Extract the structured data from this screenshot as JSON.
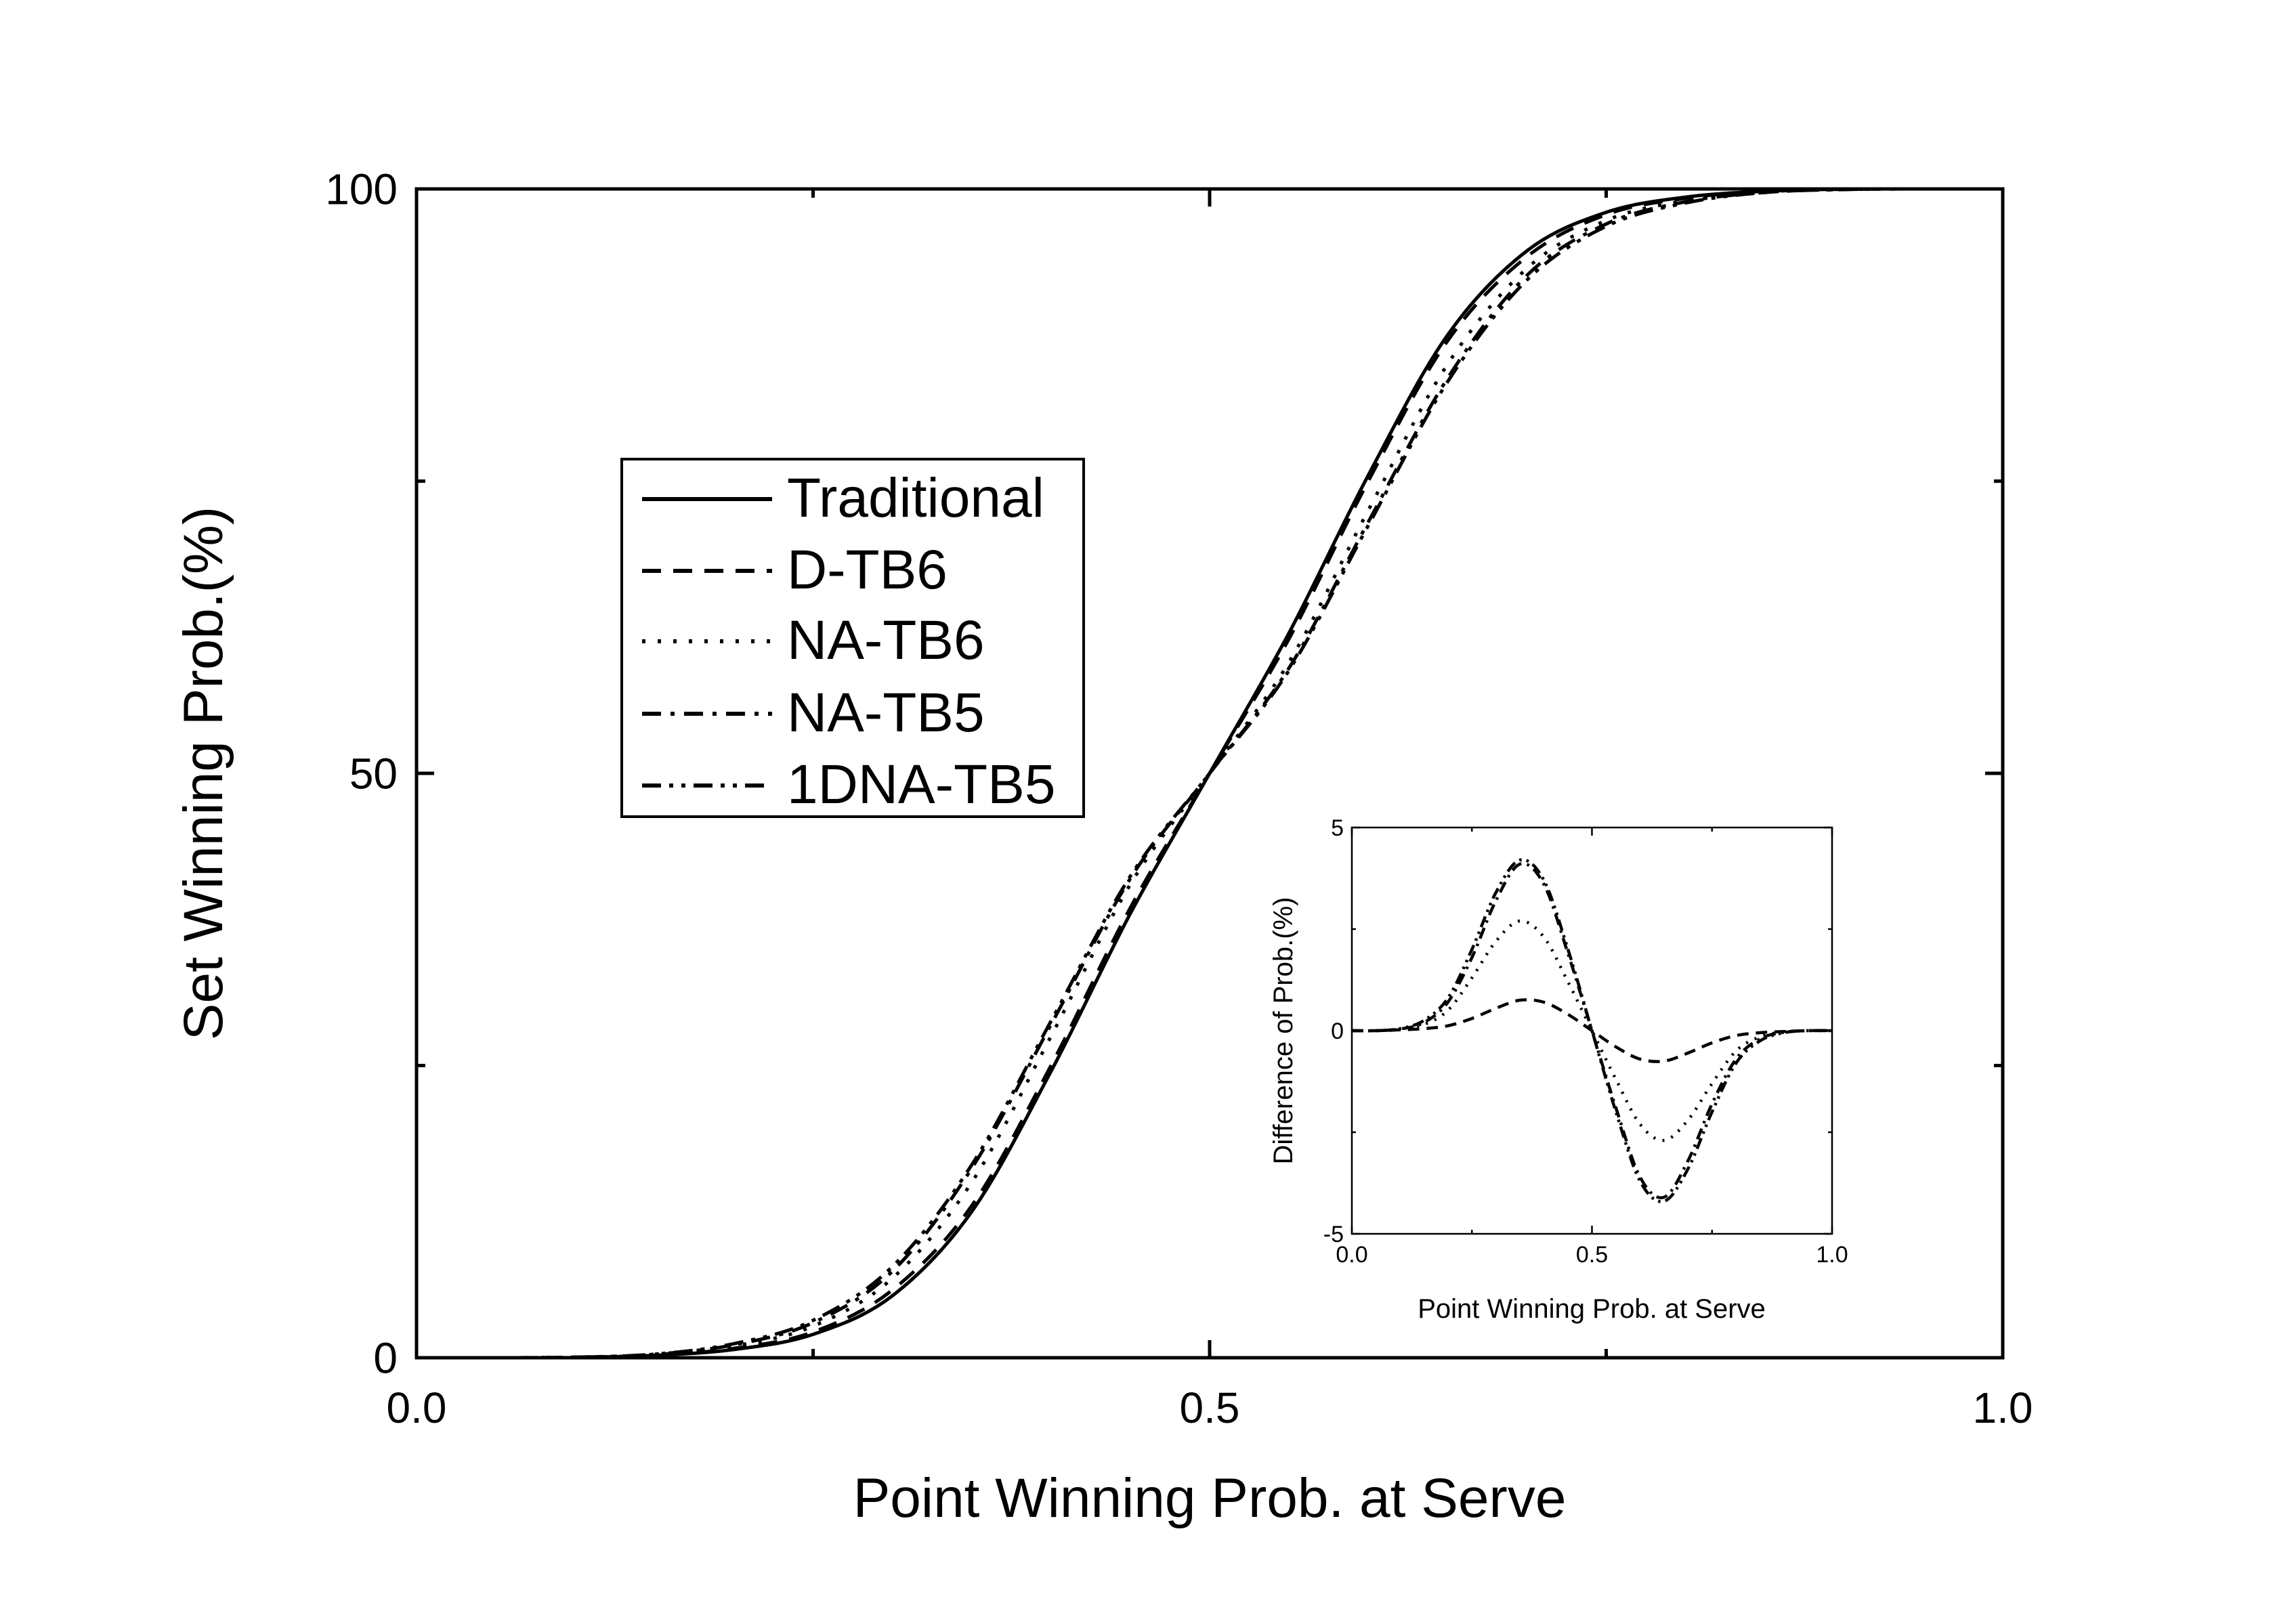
{
  "chart_data": [
    {
      "type": "line",
      "xlabel": "Point Winning Prob. at Serve",
      "ylabel": "Set Winning Prob.(%)",
      "xlim": [
        0.0,
        1.0
      ],
      "ylim": [
        0,
        100
      ],
      "x_ticks": [
        0.0,
        0.5,
        1.0
      ],
      "x_tick_labels": [
        "0.0",
        "0.5",
        "1.0"
      ],
      "y_ticks": [
        0,
        50,
        100
      ],
      "y_tick_labels": [
        "0",
        "50",
        "100"
      ],
      "grid": false,
      "legend_position": "upper-left",
      "x": [
        0.0,
        0.05,
        0.1,
        0.15,
        0.2,
        0.25,
        0.3,
        0.35,
        0.4,
        0.45,
        0.5,
        0.55,
        0.6,
        0.65,
        0.7,
        0.75,
        0.8,
        0.85,
        0.9,
        0.95,
        1.0
      ],
      "series": [
        {
          "name": "Traditional",
          "dash": "solid",
          "values": [
            0,
            0,
            0.02,
            0.2,
            0.7,
            2.0,
            5.3,
            12.5,
            24.5,
            38.0,
            50,
            62.0,
            75.5,
            87.5,
            94.7,
            98.0,
            99.3,
            99.8,
            99.98,
            100,
            100
          ]
        },
        {
          "name": "D-TB6",
          "dash": "dash",
          "values": [
            0,
            0,
            0.03,
            0.2,
            0.8,
            2.2,
            5.8,
            13.0,
            25.0,
            38.5,
            50,
            61.5,
            75.0,
            87.0,
            94.2,
            97.8,
            99.2,
            99.8,
            99.97,
            100,
            100
          ]
        },
        {
          "name": "NA-TB6",
          "dash": "dot",
          "values": [
            0,
            0,
            0.04,
            0.25,
            1.0,
            2.7,
            6.8,
            15.0,
            27.5,
            40.5,
            50,
            59.5,
            72.5,
            85.0,
            93.2,
            97.3,
            99.0,
            99.75,
            99.96,
            100,
            100
          ]
        },
        {
          "name": "NA-TB5",
          "dash": "dashdot",
          "values": [
            0,
            0,
            0.04,
            0.3,
            1.1,
            3.0,
            7.4,
            16.2,
            28.5,
            41.0,
            50,
            59.0,
            71.5,
            83.8,
            92.6,
            97.0,
            98.9,
            99.7,
            99.96,
            100,
            100
          ]
        },
        {
          "name": "1DNA-TB5",
          "dash": "dashdotdot",
          "values": [
            0,
            0,
            0.05,
            0.3,
            1.2,
            3.2,
            7.8,
            16.5,
            28.8,
            41.2,
            50,
            58.8,
            71.2,
            83.5,
            92.2,
            96.8,
            98.8,
            99.7,
            99.95,
            100,
            100
          ]
        }
      ]
    },
    {
      "type": "line",
      "xlabel": "Point Winning Prob. at Serve",
      "ylabel": "Difference of Prob.(%)",
      "xlim": [
        0.0,
        1.0
      ],
      "ylim": [
        -5,
        5
      ],
      "x_ticks": [
        0.0,
        0.5,
        1.0
      ],
      "x_tick_labels": [
        "0.0",
        "0.5",
        "1.0"
      ],
      "y_ticks": [
        -5,
        0,
        5
      ],
      "y_tick_labels": [
        "-5",
        "0",
        "5"
      ],
      "grid": false,
      "x": [
        0.0,
        0.05,
        0.1,
        0.15,
        0.2,
        0.25,
        0.3,
        0.35,
        0.4,
        0.45,
        0.5,
        0.55,
        0.6,
        0.65,
        0.7,
        0.75,
        0.8,
        0.85,
        0.9,
        0.95,
        1.0
      ],
      "series": [
        {
          "dash": "dash",
          "values": [
            0,
            0,
            0.02,
            0.05,
            0.12,
            0.3,
            0.55,
            0.75,
            0.7,
            0.4,
            0,
            -0.4,
            -0.7,
            -0.75,
            -0.55,
            -0.3,
            -0.12,
            -0.05,
            -0.02,
            0,
            0
          ]
        },
        {
          "dash": "dot",
          "values": [
            0,
            0,
            0.03,
            0.15,
            0.5,
            1.3,
            2.2,
            2.7,
            2.3,
            1.2,
            0,
            -1.2,
            -2.3,
            -2.7,
            -2.2,
            -1.3,
            -0.5,
            -0.15,
            -0.03,
            0,
            0
          ]
        },
        {
          "dash": "dashdot",
          "values": [
            0,
            0,
            0.04,
            0.2,
            0.7,
            1.8,
            3.2,
            4.1,
            3.6,
            1.9,
            0,
            -1.9,
            -3.6,
            -4.1,
            -3.2,
            -1.8,
            -0.7,
            -0.2,
            -0.04,
            0,
            0
          ]
        },
        {
          "dash": "dashdotdot",
          "values": [
            0,
            0,
            0.05,
            0.25,
            0.8,
            2.0,
            3.4,
            4.2,
            3.7,
            2.0,
            0,
            -2.0,
            -3.7,
            -4.2,
            -3.4,
            -2.0,
            -0.8,
            -0.25,
            -0.05,
            0,
            0
          ]
        }
      ]
    }
  ]
}
